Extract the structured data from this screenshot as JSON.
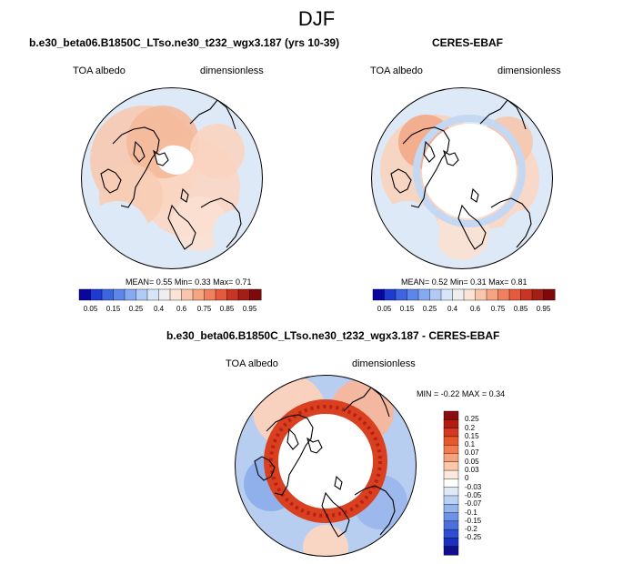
{
  "figure": {
    "season": "DJF"
  },
  "panel_model": {
    "case": "b.e30_beta06.B1850C_LTso.ne30_t232_wgx3.187 (yrs 10-39)",
    "variable": "TOA albedo",
    "units": "dimensionless",
    "stats": {
      "mean_label": "MEAN=",
      "mean": "0.55",
      "min_label": "Min=",
      "min": "0.33",
      "max_label": "Max=",
      "max": "0.71"
    }
  },
  "panel_obs": {
    "case": "CERES-EBAF",
    "variable": "TOA albedo",
    "units": "dimensionless",
    "stats": {
      "mean_label": "MEAN=",
      "mean": "0.52",
      "min_label": "Min=",
      "min": "0.31",
      "max_label": "Max=",
      "max": "0.81"
    }
  },
  "panel_diff": {
    "case": "b.e30_beta06.B1850C_LTso.ne30_t232_wgx3.187 - CERES-EBAF",
    "variable": "TOA albedo",
    "units": "dimensionless",
    "stats": {
      "min_label": "MIN =",
      "min": "-0.22",
      "max_label": "MAX =",
      "max": "0.34"
    }
  },
  "colorbar_abs": {
    "labels": [
      "0.05",
      "0.15",
      "0.25",
      "0.4",
      "0.6",
      "0.75",
      "0.85",
      "0.95"
    ],
    "colors": [
      "#08069c",
      "#1f3ad0",
      "#3d65e0",
      "#5c86ea",
      "#86aaf2",
      "#b1cbf6",
      "#d6e6f8",
      "#eeeeee",
      "#fbe4d6",
      "#f9c6ad",
      "#f6a583",
      "#f08160",
      "#e35a3d",
      "#c93522",
      "#a51e16",
      "#7c0a0a"
    ]
  },
  "colorbar_diff": {
    "labels": [
      "0.25",
      "0.2",
      "0.15",
      "0.1",
      "0.07",
      "0.05",
      "0.03",
      "0",
      "-0.03",
      "-0.05",
      "-0.07",
      "-0.1",
      "-0.15",
      "-0.2",
      "-0.25"
    ],
    "colors": [
      "#8a0c0c",
      "#b41c14",
      "#d33a1f",
      "#e8582e",
      "#f27c4f",
      "#f7a27a",
      "#fbc7a8",
      "#fde9dc",
      "#ffffff",
      "#dfe9f8",
      "#bcd2f4",
      "#94b5ee",
      "#6c93e6",
      "#4a70dd",
      "#2f4fd2",
      "#1c2fbe",
      "#0d0f8f"
    ]
  }
}
